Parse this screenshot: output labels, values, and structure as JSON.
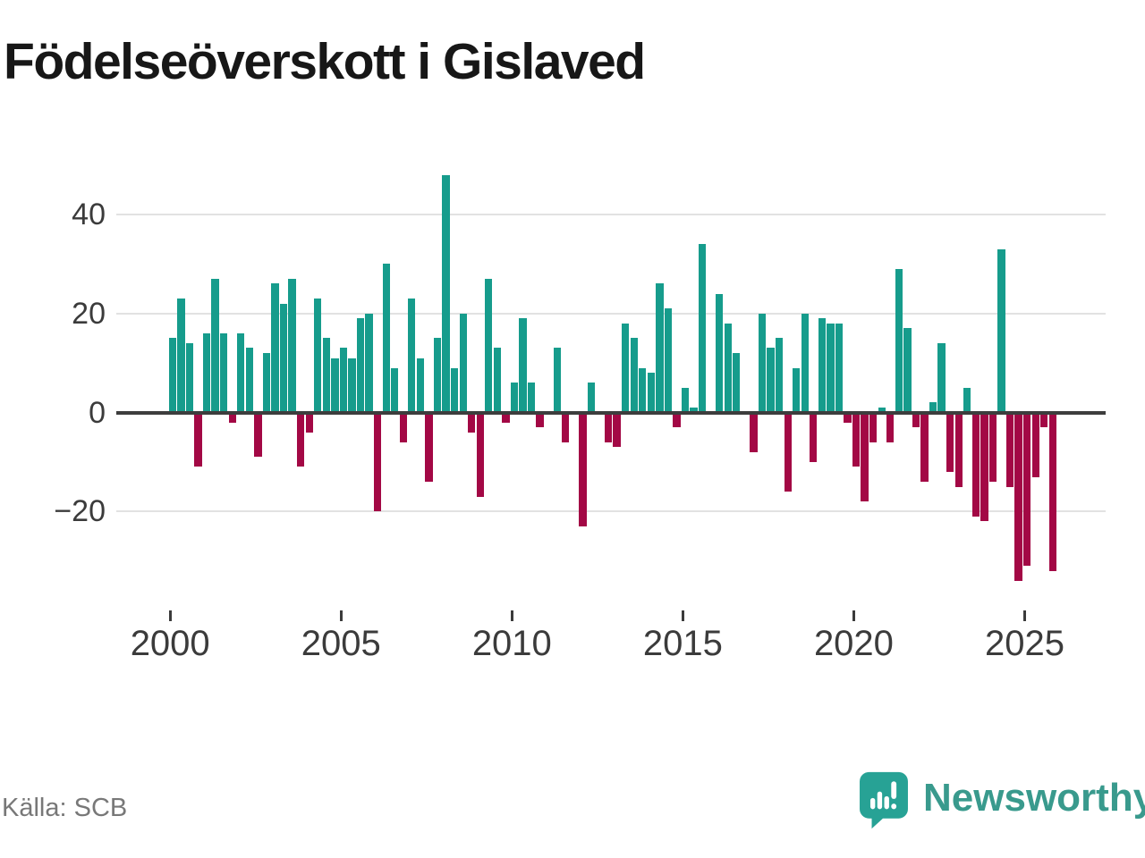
{
  "title": "Födelseöverskott i Gislaved",
  "source": "Källa: SCB",
  "brand": {
    "name": "Newsworthy"
  },
  "colors": {
    "positive": "#169c8c",
    "negative": "#a30845",
    "grid": "#e2e2e2",
    "axis": "#3d3d3d",
    "tick": "#3b3b3b",
    "title": "#171717",
    "source": "#787878",
    "brand_text": "#399a8d",
    "logo_bubble": "#27a295"
  },
  "chart_data": {
    "type": "bar",
    "title": "Födelseöverskott i Gislaved",
    "frequency": "quarterly",
    "x_start": "2000 Q1",
    "x_end": "2025 Q4",
    "values": [
      15,
      23,
      14,
      -11,
      16,
      27,
      16,
      -2,
      16,
      13,
      -9,
      12,
      26,
      22,
      27,
      -11,
      -4,
      23,
      15,
      11,
      13,
      11,
      19,
      20,
      -20,
      30,
      9,
      -6,
      23,
      11,
      -14,
      15,
      48,
      9,
      20,
      -4,
      -17,
      27,
      13,
      -2,
      6,
      19,
      6,
      -3,
      0,
      13,
      -6,
      0,
      -23,
      6,
      0,
      -6,
      -7,
      18,
      15,
      9,
      8,
      26,
      21,
      -3,
      5,
      1,
      34,
      0,
      24,
      18,
      12,
      0,
      -8,
      20,
      13,
      15,
      -16,
      9,
      20,
      -10,
      19,
      18,
      18,
      -2,
      -11,
      -18,
      -6,
      1,
      -6,
      29,
      17,
      -3,
      -14,
      2,
      14,
      -12,
      -15,
      5,
      -21,
      -22,
      -14,
      33,
      -15,
      -34,
      -31,
      -13,
      -3,
      -32
    ],
    "y_gridlines": [
      40,
      20,
      0,
      -20
    ],
    "y_tick_labels": [
      "40",
      "20",
      "0",
      "−20"
    ],
    "x_tick_years": [
      2000,
      2005,
      2010,
      2015,
      2020,
      2025
    ],
    "ylim": [
      -38,
      50
    ],
    "grid": true,
    "legend": "none"
  }
}
